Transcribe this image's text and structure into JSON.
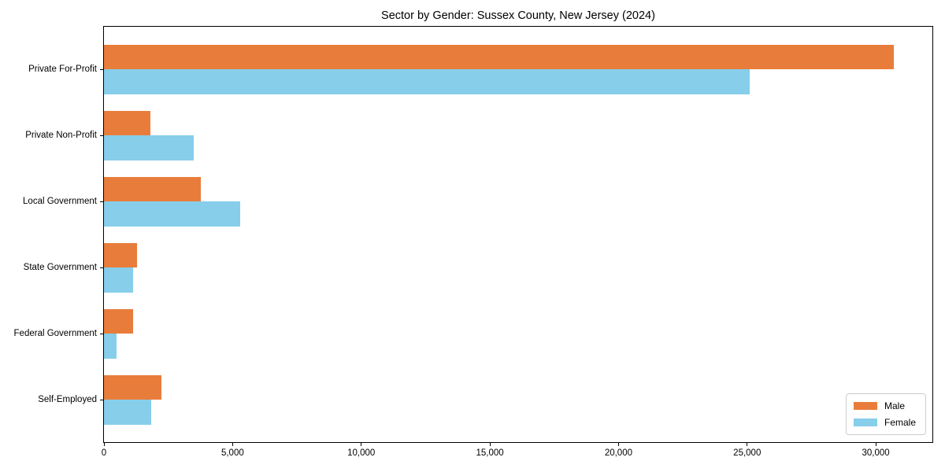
{
  "chart_data": {
    "type": "bar",
    "orientation": "horizontal",
    "title": "Sector by Gender: Sussex County, New Jersey (2024)",
    "xlabel": "",
    "ylabel": "",
    "categories": [
      "Private For-Profit",
      "Private Non-Profit",
      "Local Government",
      "State Government",
      "Federal Government",
      "Self-Employed"
    ],
    "series": [
      {
        "name": "Male",
        "color": "#e87d3b",
        "values": [
          30700,
          1800,
          3750,
          1300,
          1130,
          2230
        ]
      },
      {
        "name": "Female",
        "color": "#87ceeb",
        "values": [
          25100,
          3500,
          5300,
          1130,
          490,
          1830
        ]
      }
    ],
    "xlim": [
      0,
      32200
    ],
    "x_ticks": [
      0,
      5000,
      10000,
      15000,
      20000,
      25000,
      30000
    ],
    "x_tick_labels": [
      "0",
      "5,000",
      "10,000",
      "15,000",
      "20,000",
      "25,000",
      "30,000"
    ],
    "grid": false,
    "legend_position": "lower right"
  },
  "legend": {
    "items": [
      {
        "label": "Male",
        "color": "#e87d3b"
      },
      {
        "label": "Female",
        "color": "#87ceeb"
      }
    ]
  }
}
